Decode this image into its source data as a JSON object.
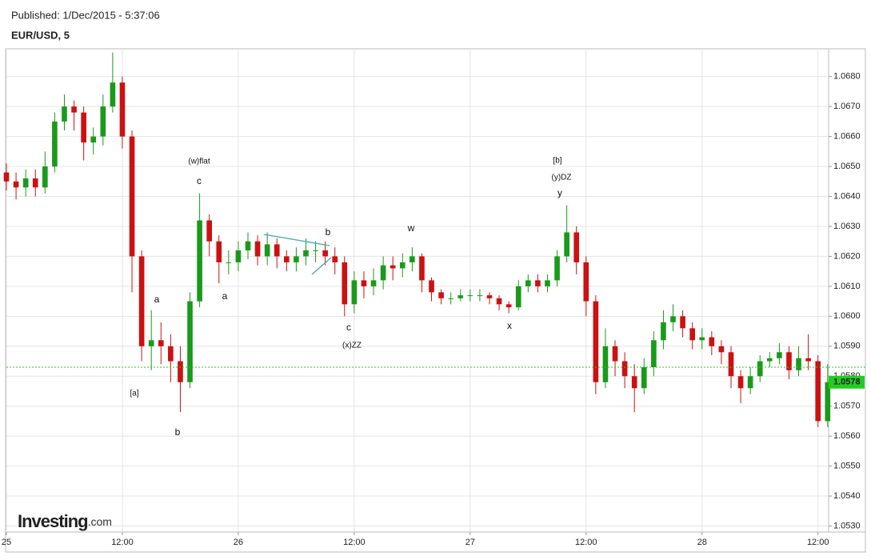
{
  "header": {
    "published": "Published: 1/Dec/2015 - 5:37:06",
    "symbol": "EUR/USD, 5"
  },
  "logo": {
    "name": "Investing",
    "suffix": ".com"
  },
  "chart_data": {
    "type": "candlestick",
    "x": [
      0,
      1,
      2,
      3,
      4,
      5,
      6,
      7,
      8,
      9,
      10,
      11,
      12,
      13,
      14,
      15,
      16,
      17,
      18,
      19,
      20,
      21,
      22,
      23,
      24,
      25,
      26,
      27,
      28,
      29,
      30,
      31,
      32,
      33,
      34,
      35,
      36,
      37,
      38,
      39,
      40,
      41,
      42,
      43,
      44,
      45,
      46,
      47,
      48,
      49,
      50,
      51,
      52,
      53,
      54,
      55,
      56,
      57,
      58,
      59,
      60,
      61,
      62,
      63,
      64,
      65,
      66,
      67,
      68,
      69,
      70,
      71,
      72,
      73,
      74,
      75,
      76,
      77,
      78,
      79,
      80,
      81,
      82,
      83,
      84,
      85
    ],
    "open": [
      1.0648,
      1.0645,
      1.0643,
      1.0646,
      1.0643,
      1.065,
      1.0665,
      1.067,
      1.0668,
      1.0658,
      1.066,
      1.067,
      1.0678,
      1.066,
      1.062,
      1.059,
      1.0592,
      1.059,
      1.0585,
      1.0578,
      1.0605,
      1.0632,
      1.0625,
      1.0618,
      1.0618,
      1.0622,
      1.0625,
      1.062,
      1.0624,
      1.062,
      1.0618,
      1.062,
      1.0622,
      1.0622,
      1.062,
      1.0618,
      1.0604,
      1.0612,
      1.061,
      1.0612,
      1.0617,
      1.0616,
      1.0618,
      1.062,
      1.0612,
      1.0608,
      1.0606,
      1.0606,
      1.0607,
      1.0607,
      1.0607,
      1.0606,
      1.0604,
      1.0603,
      1.061,
      1.0612,
      1.061,
      1.0612,
      1.062,
      1.0628,
      1.0618,
      1.0605,
      1.0578,
      1.059,
      1.0585,
      1.058,
      1.0576,
      1.0583,
      1.0592,
      1.0598,
      1.06,
      1.0596,
      1.0592,
      1.0593,
      1.059,
      1.0588,
      1.058,
      1.0576,
      1.058,
      1.0585,
      1.0586,
      1.0588,
      1.0582,
      1.0586,
      1.0585,
      1.0565
    ],
    "high": [
      1.0651,
      1.0648,
      1.0649,
      1.0649,
      1.0655,
      1.0668,
      1.0674,
      1.0672,
      1.067,
      1.0663,
      1.0674,
      1.0688,
      1.068,
      1.0662,
      1.0622,
      1.0602,
      1.0598,
      1.0594,
      1.059,
      1.0608,
      1.0641,
      1.0634,
      1.0627,
      1.0622,
      1.0625,
      1.0628,
      1.0627,
      1.0628,
      1.0626,
      1.0622,
      1.0623,
      1.0626,
      1.0625,
      1.0625,
      1.0623,
      1.062,
      1.0615,
      1.0615,
      1.0616,
      1.062,
      1.062,
      1.0621,
      1.0623,
      1.0621,
      1.0613,
      1.0609,
      1.0608,
      1.0609,
      1.0609,
      1.0609,
      1.0608,
      1.0607,
      1.0605,
      1.0612,
      1.0614,
      1.0614,
      1.0614,
      1.0622,
      1.0637,
      1.063,
      1.062,
      1.0607,
      1.0596,
      1.0592,
      1.0588,
      1.0584,
      1.0586,
      1.0595,
      1.0602,
      1.0604,
      1.0602,
      1.0598,
      1.0596,
      1.0595,
      1.0592,
      1.059,
      1.0582,
      1.0583,
      1.0587,
      1.0588,
      1.0591,
      1.059,
      1.059,
      1.0594,
      1.0587,
      1.0584
    ],
    "low": [
      1.0642,
      1.0639,
      1.064,
      1.064,
      1.0641,
      1.0648,
      1.0662,
      1.0662,
      1.0652,
      1.0654,
      1.0657,
      1.0668,
      1.0656,
      1.0608,
      1.0585,
      1.0582,
      1.0584,
      1.0578,
      1.0568,
      1.0576,
      1.0603,
      1.062,
      1.0611,
      1.0614,
      1.0615,
      1.0619,
      1.0617,
      1.0617,
      1.0616,
      1.0615,
      1.0615,
      1.0617,
      1.0618,
      1.0617,
      1.0614,
      1.06,
      1.0601,
      1.0606,
      1.0607,
      1.0609,
      1.0612,
      1.0613,
      1.0615,
      1.0608,
      1.0605,
      1.0604,
      1.0604,
      1.0605,
      1.0605,
      1.0605,
      1.0604,
      1.0602,
      1.0601,
      1.0602,
      1.0608,
      1.0608,
      1.0608,
      1.061,
      1.0618,
      1.0614,
      1.06,
      1.0574,
      1.0576,
      1.058,
      1.0576,
      1.0568,
      1.0574,
      1.058,
      1.0589,
      1.0595,
      1.0593,
      1.0589,
      1.0589,
      1.0587,
      1.0584,
      1.0576,
      1.0571,
      1.0574,
      1.0578,
      1.0583,
      1.0584,
      1.0579,
      1.058,
      1.0582,
      1.0563,
      1.0563
    ],
    "close": [
      1.0645,
      1.0643,
      1.0646,
      1.0643,
      1.065,
      1.0665,
      1.067,
      1.0668,
      1.0658,
      1.066,
      1.067,
      1.0678,
      1.066,
      1.062,
      1.059,
      1.0592,
      1.059,
      1.0585,
      1.0578,
      1.0605,
      1.0632,
      1.0625,
      1.0618,
      1.0618,
      1.0622,
      1.0625,
      1.062,
      1.0624,
      1.062,
      1.0618,
      1.062,
      1.0622,
      1.0622,
      1.062,
      1.0618,
      1.0604,
      1.0612,
      1.061,
      1.0612,
      1.0617,
      1.0616,
      1.0618,
      1.062,
      1.0612,
      1.0608,
      1.0606,
      1.0606,
      1.0607,
      1.0607,
      1.0607,
      1.0606,
      1.0604,
      1.0603,
      1.061,
      1.0612,
      1.061,
      1.0612,
      1.062,
      1.0628,
      1.0618,
      1.0605,
      1.0578,
      1.059,
      1.0585,
      1.058,
      1.0576,
      1.0583,
      1.0592,
      1.0598,
      1.06,
      1.0596,
      1.0592,
      1.0593,
      1.059,
      1.0588,
      1.058,
      1.0576,
      1.058,
      1.0585,
      1.0586,
      1.0588,
      1.0582,
      1.0586,
      1.0585,
      1.0565,
      1.0578
    ],
    "up_color": "#1a9a1a",
    "down_color": "#cc1111",
    "xlim": [
      0,
      85.1
    ],
    "xticks": [
      {
        "value": 0,
        "label": "25"
      },
      {
        "value": 12,
        "label": "12:00"
      },
      {
        "value": 24,
        "label": "26"
      },
      {
        "value": 36,
        "label": "12:00"
      },
      {
        "value": 48,
        "label": "27"
      },
      {
        "value": 60,
        "label": "12:00"
      },
      {
        "value": 72,
        "label": "28"
      },
      {
        "value": 84,
        "label": "12:00"
      }
    ],
    "ylim": [
      1.0528,
      1.0689
    ],
    "yticks": [
      {
        "value": 1.053,
        "label": "1.0530"
      },
      {
        "value": 1.054,
        "label": "1.0540"
      },
      {
        "value": 1.055,
        "label": "1.0550"
      },
      {
        "value": 1.056,
        "label": "1.0560"
      },
      {
        "value": 1.057,
        "label": "1.0570"
      },
      {
        "value": 1.058,
        "label": "1.0580"
      },
      {
        "value": 1.059,
        "label": "1.0590"
      },
      {
        "value": 1.06,
        "label": "1.0600"
      },
      {
        "value": 1.061,
        "label": "1.0610"
      },
      {
        "value": 1.062,
        "label": "1.0620"
      },
      {
        "value": 1.063,
        "label": "1.0630"
      },
      {
        "value": 1.064,
        "label": "1.0640"
      },
      {
        "value": 1.065,
        "label": "1.0650"
      },
      {
        "value": 1.066,
        "label": "1.0660"
      },
      {
        "value": 1.067,
        "label": "1.0670"
      },
      {
        "value": 1.068,
        "label": "1.0680"
      }
    ],
    "grid": true,
    "reference_line": 1.0583,
    "last_price": 1.0578,
    "last_price_color": "#22cc22",
    "annotations": [
      "(w)flat",
      "c",
      "a",
      "a",
      "[a]",
      "b",
      "b",
      "c",
      "(x)ZZ",
      "w",
      "x",
      "[b]",
      "(y)DZ",
      "y"
    ]
  }
}
